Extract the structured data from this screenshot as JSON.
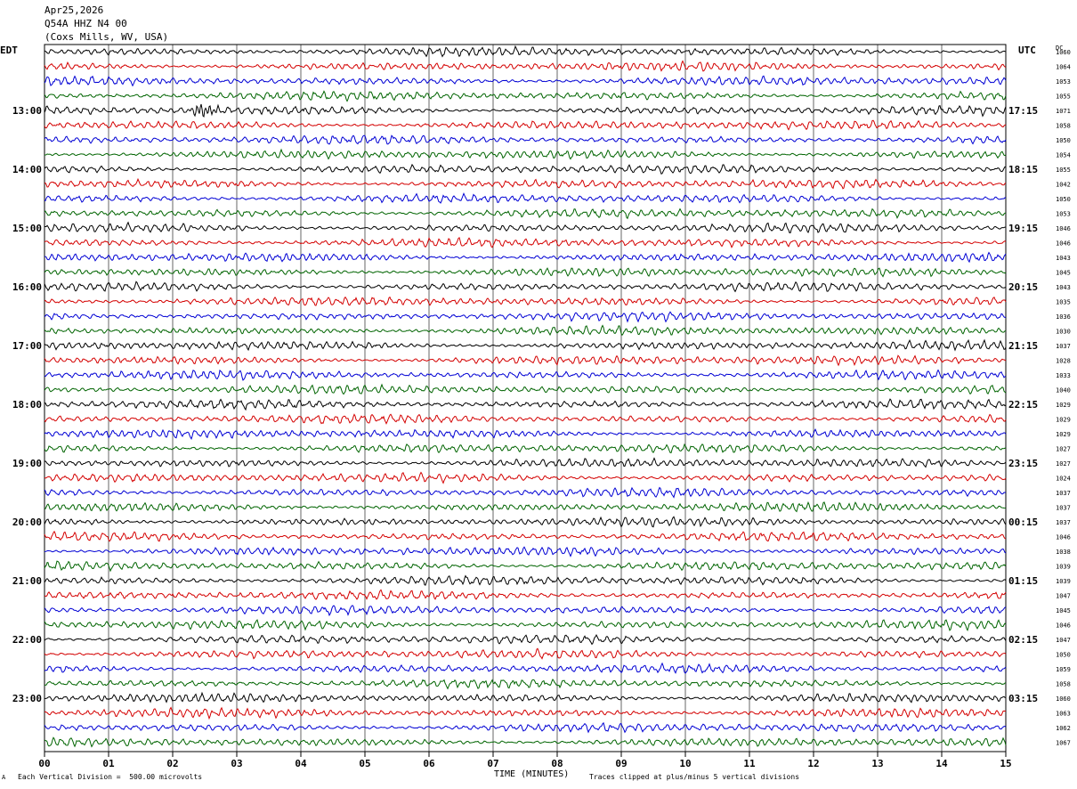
{
  "header": {
    "date": "Apr25,2026",
    "station": "Q54A HHZ N4 00",
    "location": "(Coxs Mills, WV, USA)"
  },
  "left_tz": "EDT",
  "right_tz": "UTC",
  "dc_label": "DC",
  "footer": {
    "vertical_division": "Each Vertical Division =  500.00 microvolts",
    "xlabel": "TIME (MINUTES)",
    "clip_note": "Traces clipped at plus/minus 5 vertical divisions",
    "corner_mark": "A"
  },
  "colors": {
    "trace_cycle": [
      "#000000",
      "#d40000",
      "#0000d4",
      "#006400"
    ],
    "grid": "#000000"
  },
  "chart_data": {
    "type": "line",
    "title": "",
    "xlabel": "TIME (MINUTES)",
    "xlim": [
      0,
      15
    ],
    "x_ticks": [
      "00",
      "01",
      "02",
      "03",
      "04",
      "05",
      "06",
      "07",
      "08",
      "09",
      "10",
      "11",
      "12",
      "13",
      "14",
      "15"
    ],
    "rows": 48,
    "traces_per_hour": 4,
    "left_hour_labels": [
      "13:00",
      "14:00",
      "15:00",
      "16:00",
      "17:00",
      "18:00",
      "19:00",
      "20:00",
      "21:00",
      "22:00",
      "23:00"
    ],
    "right_hour_labels": [
      "17:15",
      "18:15",
      "19:15",
      "20:15",
      "21:15",
      "22:15",
      "23:15",
      "00:15",
      "01:15",
      "02:15",
      "03:15"
    ],
    "first_labeled_row": 4,
    "dc_offsets": [
      "1060",
      "1064",
      "1053",
      "1055",
      "1071",
      "1058",
      "1050",
      "1054",
      "1055",
      "1042",
      "1050",
      "1053",
      "1046",
      "1046",
      "1043",
      "1045",
      "1043",
      "1035",
      "1036",
      "1030",
      "1037",
      "1028",
      "1033",
      "1040",
      "1029",
      "1029",
      "1029",
      "1027",
      "1027",
      "1024",
      "1037",
      "1037",
      "1037",
      "1046",
      "1038",
      "1039",
      "1039",
      "1047",
      "1045",
      "1046",
      "1047",
      "1050",
      "1059",
      "1058",
      "1060",
      "1063",
      "1062",
      "1067"
    ],
    "event": {
      "row": 4,
      "start_min": 2.0,
      "end_min": 3.0,
      "peak_min": 2.5
    }
  }
}
